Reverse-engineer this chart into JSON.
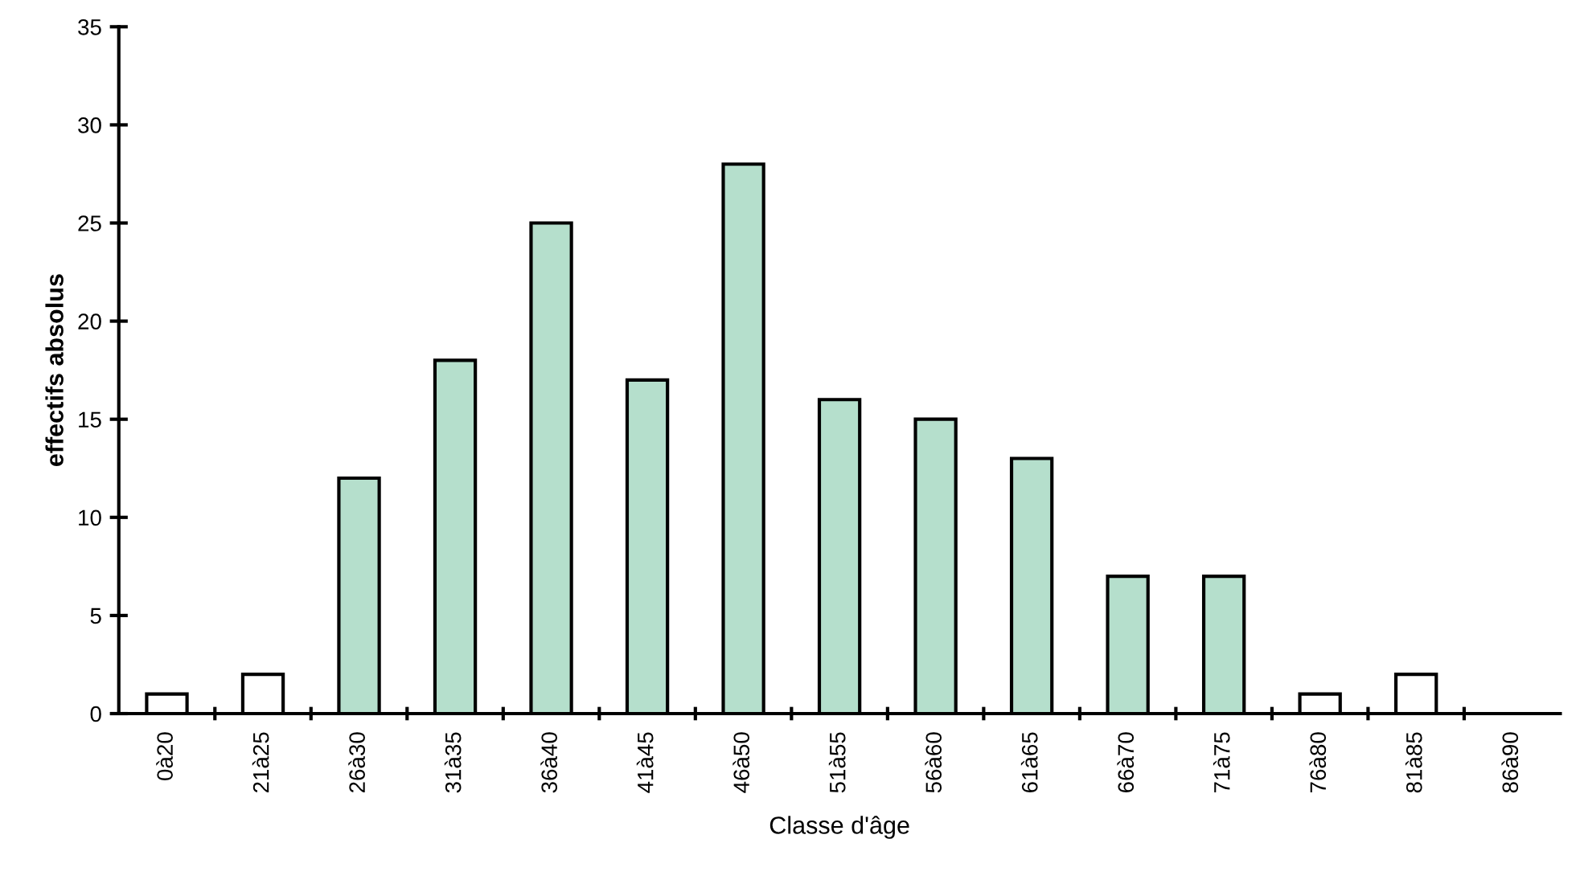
{
  "chart_data": {
    "type": "bar",
    "xlabel": "Classe d'âge",
    "ylabel": "effectifs absolus",
    "categories": [
      "0à20",
      "21à25",
      "26à30",
      "31à35",
      "36à40",
      "41à45",
      "46à50",
      "51à55",
      "56à60",
      "61à65",
      "66à70",
      "71à75",
      "76à80",
      "81à85",
      "86à90"
    ],
    "values": [
      1,
      2,
      12,
      18,
      25,
      17,
      28,
      16,
      15,
      13,
      7,
      7,
      1,
      2,
      0
    ],
    "colors": [
      "#ffffff",
      "#ffffff",
      "#b5dfcc",
      "#b5dfcc",
      "#b5dfcc",
      "#b5dfcc",
      "#b5dfcc",
      "#b5dfcc",
      "#b5dfcc",
      "#b5dfcc",
      "#b5dfcc",
      "#b5dfcc",
      "#ffffff",
      "#ffffff",
      "#000000"
    ],
    "ylim": [
      0,
      35
    ],
    "yticks": [
      0,
      5,
      10,
      15,
      20,
      25,
      30,
      35
    ],
    "grid": false
  }
}
